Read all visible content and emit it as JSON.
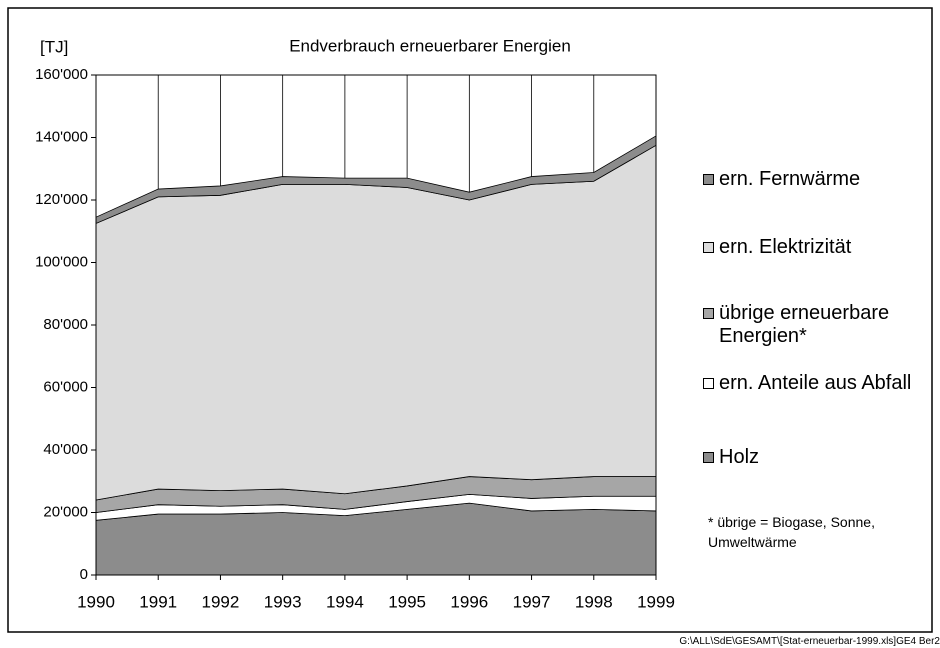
{
  "chart_data": {
    "type": "stacked_area",
    "title": "Endverbrauch erneuerbarer Energien",
    "y_label": "[TJ]",
    "categories": [
      "1990",
      "1991",
      "1992",
      "1993",
      "1994",
      "1995",
      "1996",
      "1997",
      "1998",
      "1999"
    ],
    "series": [
      {
        "name": "Holz",
        "color": "#8c8c8c",
        "values": [
          17500,
          19500,
          19500,
          20000,
          19000,
          21000,
          23000,
          20500,
          21000,
          20500
        ]
      },
      {
        "name": "ern. Anteile aus Abfall",
        "color": "#ffffff",
        "values": [
          2500,
          3000,
          2500,
          2500,
          2000,
          2500,
          2800,
          4000,
          4200,
          4700
        ]
      },
      {
        "name": "übrige erneuerbare Energien*",
        "color": "#a6a6a6",
        "values": [
          4000,
          5000,
          5000,
          5000,
          5000,
          5000,
          5700,
          6000,
          6300,
          6300
        ]
      },
      {
        "name": "ern. Elektrizität",
        "color": "#dcdcdc",
        "values": [
          88500,
          93500,
          94500,
          97500,
          99000,
          95500,
          88500,
          94500,
          94500,
          106000
        ]
      },
      {
        "name": "ern. Fernwärme",
        "color": "#8c8c8c",
        "values": [
          2000,
          2500,
          3000,
          2500,
          2000,
          3000,
          2500,
          2500,
          2800,
          3000
        ]
      }
    ],
    "ylim": [
      0,
      160000
    ],
    "yticks": [
      0,
      {
        "value": 20000,
        "label": "20'000"
      },
      {
        "value": 40000,
        "label": "40'000"
      },
      {
        "value": 60000,
        "label": "60'000"
      },
      {
        "value": 80000,
        "label": "80'000"
      },
      {
        "value": 100000,
        "label": "100'000"
      },
      {
        "value": 120000,
        "label": "120'000"
      },
      {
        "value": 140000,
        "label": "140'000"
      },
      {
        "value": 160000,
        "label": "160'000"
      }
    ],
    "xgrid": true,
    "note": "* übrige = Biogase, Sonne, Umweltwärme",
    "footer": "G:\\ALL\\SdE\\GESAMT\\[Stat-erneuerbar-1999.xls]GE4   Ber2"
  }
}
